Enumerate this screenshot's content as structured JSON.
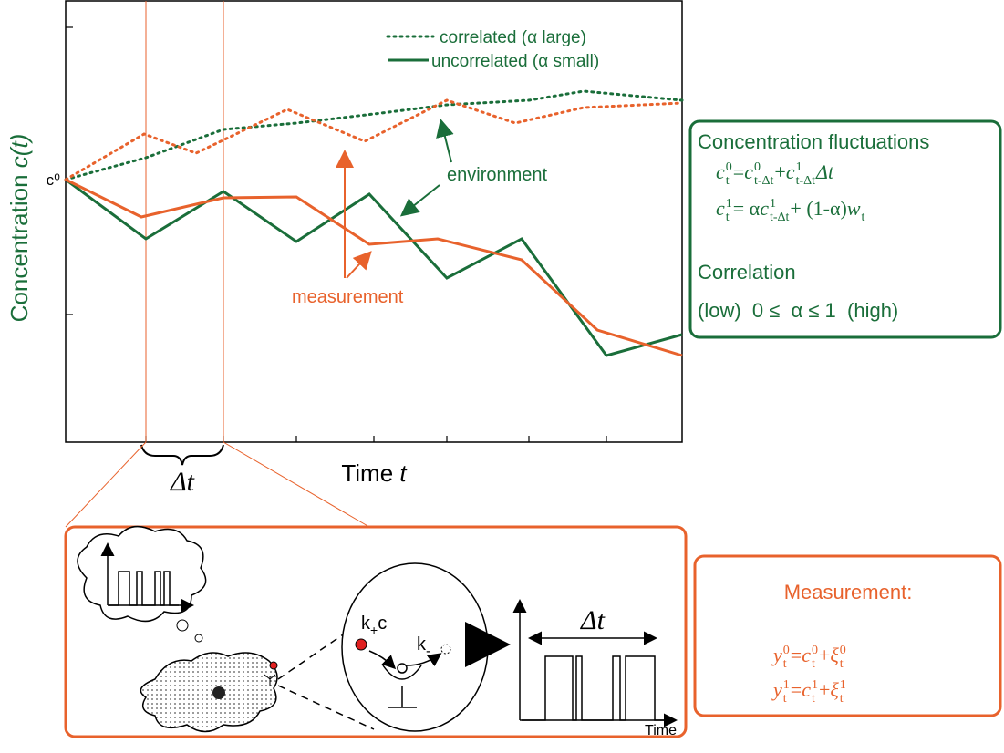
{
  "plot": {
    "y_label": [
      "Concentration ",
      "c(t)"
    ],
    "x_label": [
      "Time ",
      "t"
    ],
    "c0_label": "c⁰",
    "delta_t": "Δt",
    "legend": [
      "correlated (α large)",
      "uncorrelated (α small)"
    ],
    "annotations": {
      "environment": "environment",
      "measurement": "measurement"
    }
  },
  "fluctuations_box": {
    "title": "Concentration fluctuations",
    "equations": [
      [
        {
          "t": "c",
          "sup": "0",
          "sub": "t"
        },
        {
          "t": " = "
        },
        {
          "t": "c",
          "sup": "0",
          "sub": "t-Δt"
        },
        {
          "t": " + "
        },
        {
          "t": "c",
          "sup": "1",
          "sub": "t-Δt"
        },
        {
          "t": "Δt"
        }
      ],
      [
        {
          "t": "c",
          "sup": "1",
          "sub": "t"
        },
        {
          "t": " = α"
        },
        {
          "t": "c",
          "sup": "1",
          "sub": "t-Δt"
        },
        {
          "t": "+ (1-α)"
        },
        {
          "t": "w",
          "sub": "t"
        }
      ]
    ],
    "correlation_title": "Correlation",
    "correlation_range": "(low)  0 ≤  α ≤ 1  (high)"
  },
  "cell_panel": {
    "rates": {
      "k_plus": [
        "k",
        "+",
        "c"
      ],
      "k_minus": [
        "k",
        "-"
      ]
    },
    "delta_t": "Δt",
    "time_label": "Time"
  },
  "measurement_box": {
    "title": "Measurement:",
    "equations": [
      [
        {
          "t": "y",
          "sup": "0",
          "sub": "t"
        },
        {
          "t": " = "
        },
        {
          "t": "c",
          "sup": "0",
          "sub": "t"
        },
        {
          "t": " + "
        },
        {
          "t": "ξ",
          "sup": "0",
          "sub": "t"
        }
      ],
      [
        {
          "t": "y",
          "sup": "1",
          "sub": "t"
        },
        {
          "t": " = "
        },
        {
          "t": "c",
          "sup": "1",
          "sub": "t"
        },
        {
          "t": " + "
        },
        {
          "t": "ξ",
          "sup": "1",
          "sub": "t"
        }
      ]
    ]
  }
}
